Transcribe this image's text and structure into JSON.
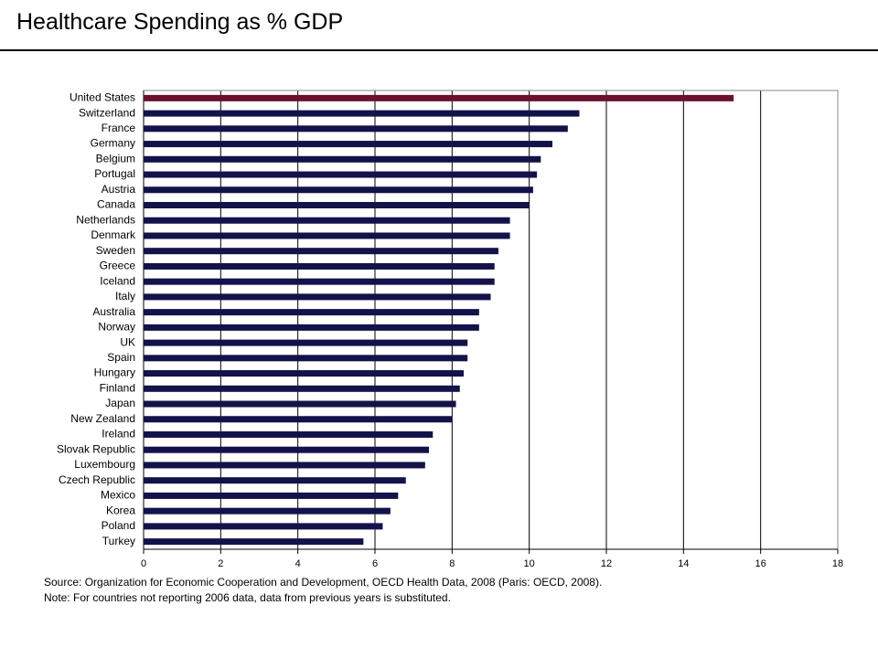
{
  "chart_data": {
    "type": "hbar",
    "title": "Healthcare Spending as % GDP",
    "categories": [
      "United States",
      "Switzerland",
      "France",
      "Germany",
      "Belgium",
      "Portugal",
      "Austria",
      "Canada",
      "Netherlands",
      "Denmark",
      "Sweden",
      "Greece",
      "Iceland",
      "Italy",
      "Australia",
      "Norway",
      "UK",
      "Spain",
      "Hungary",
      "Finland",
      "Japan",
      "New Zealand",
      "Ireland",
      "Slovak Republic",
      "Luxembourg",
      "Czech Republic",
      "Mexico",
      "Korea",
      "Poland",
      "Turkey"
    ],
    "values": [
      15.3,
      11.3,
      11.0,
      10.6,
      10.3,
      10.2,
      10.1,
      10.0,
      9.5,
      9.5,
      9.2,
      9.1,
      9.1,
      9.0,
      8.7,
      8.7,
      8.4,
      8.4,
      8.3,
      8.2,
      8.1,
      8.0,
      7.5,
      7.4,
      7.3,
      6.8,
      6.6,
      6.4,
      6.2,
      5.7
    ],
    "colors": [
      "#6b1030",
      "#14124a",
      "#14124a",
      "#14124a",
      "#14124a",
      "#14124a",
      "#14124a",
      "#14124a",
      "#14124a",
      "#14124a",
      "#14124a",
      "#14124a",
      "#14124a",
      "#14124a",
      "#14124a",
      "#14124a",
      "#14124a",
      "#14124a",
      "#14124a",
      "#14124a",
      "#14124a",
      "#14124a",
      "#14124a",
      "#14124a",
      "#14124a",
      "#14124a",
      "#14124a",
      "#14124a",
      "#14124a",
      "#14124a"
    ],
    "xlim": [
      0,
      18
    ],
    "xticks": [
      0,
      2,
      4,
      6,
      8,
      10,
      12,
      14,
      16,
      18
    ],
    "grid": true,
    "source": "Source: Organization for Economic Cooperation and Development, OECD Health Data, 2008 (Paris: OECD, 2008).",
    "note": "Note: For countries not reporting 2006 data, data from previous years is substituted."
  }
}
